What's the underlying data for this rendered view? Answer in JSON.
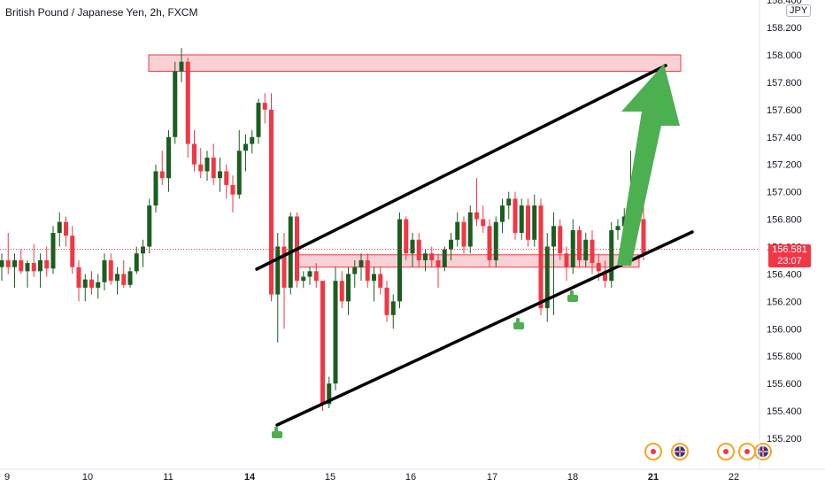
{
  "header": {
    "title": "British Pound / Japanese Yen, 2h, FXCM",
    "currency": "JPY"
  },
  "last_price": {
    "value": "156.581",
    "countdown": "23:07"
  },
  "colors": {
    "up": "#1b5e20",
    "down": "#f23645",
    "zone_fill": "#f8c9cd",
    "zone_border": "#f23645",
    "arrow": "#4caf50",
    "grid": "#f0f3fa",
    "axis_text": "#131722"
  },
  "chart_data": {
    "type": "candlestick",
    "symbol": "GBPJPY",
    "timeframe": "2h",
    "x_ticks": [
      {
        "label": "9",
        "bold": false
      },
      {
        "label": "10",
        "bold": false
      },
      {
        "label": "11",
        "bold": false
      },
      {
        "label": "14",
        "bold": true
      },
      {
        "label": "15",
        "bold": false
      },
      {
        "label": "16",
        "bold": false
      },
      {
        "label": "17",
        "bold": false
      },
      {
        "label": "18",
        "bold": false
      },
      {
        "label": "21",
        "bold": true
      },
      {
        "label": "22",
        "bold": false
      }
    ],
    "y_ticks": [
      "158.400",
      "158.200",
      "158.000",
      "157.800",
      "157.600",
      "157.400",
      "157.200",
      "157.000",
      "156.800",
      "156.600",
      "156.400",
      "156.200",
      "156.000",
      "155.800",
      "155.600",
      "155.400",
      "155.200"
    ],
    "ylim": [
      155.1,
      158.45
    ],
    "last_price": 156.581,
    "candles": [
      [
        156.45,
        156.55,
        156.35,
        156.5
      ],
      [
        156.5,
        156.7,
        156.4,
        156.45
      ],
      [
        156.45,
        156.55,
        156.3,
        156.5
      ],
      [
        156.5,
        156.58,
        156.4,
        156.42
      ],
      [
        156.42,
        156.5,
        156.3,
        156.48
      ],
      [
        156.48,
        156.62,
        156.38,
        156.42
      ],
      [
        156.42,
        156.55,
        156.3,
        156.5
      ],
      [
        156.5,
        156.6,
        156.38,
        156.44
      ],
      [
        156.44,
        156.75,
        156.4,
        156.7
      ],
      [
        156.7,
        156.85,
        156.6,
        156.78
      ],
      [
        156.78,
        156.82,
        156.6,
        156.68
      ],
      [
        156.68,
        156.75,
        156.4,
        156.45
      ],
      [
        156.45,
        156.5,
        156.2,
        156.3
      ],
      [
        156.3,
        156.4,
        156.2,
        156.36
      ],
      [
        156.36,
        156.42,
        156.25,
        156.3
      ],
      [
        156.3,
        156.4,
        156.22,
        156.34
      ],
      [
        156.34,
        156.55,
        156.28,
        156.5
      ],
      [
        156.5,
        156.55,
        156.32,
        156.35
      ],
      [
        156.35,
        156.45,
        156.25,
        156.4
      ],
      [
        156.4,
        156.5,
        156.3,
        156.32
      ],
      [
        156.32,
        156.45,
        156.3,
        156.42
      ],
      [
        156.42,
        156.6,
        156.4,
        156.55
      ],
      [
        156.55,
        156.65,
        156.45,
        156.6
      ],
      [
        156.6,
        156.95,
        156.55,
        156.9
      ],
      [
        156.9,
        157.2,
        156.85,
        157.15
      ],
      [
        157.15,
        157.3,
        157.05,
        157.1
      ],
      [
        157.1,
        157.45,
        157.0,
        157.4
      ],
      [
        157.4,
        157.95,
        157.35,
        157.88
      ],
      [
        157.88,
        158.05,
        157.8,
        157.95
      ],
      [
        157.95,
        157.98,
        157.25,
        157.35
      ],
      [
        157.35,
        157.45,
        157.15,
        157.2
      ],
      [
        157.2,
        157.32,
        157.1,
        157.15
      ],
      [
        157.15,
        157.3,
        157.08,
        157.25
      ],
      [
        157.25,
        157.35,
        157.05,
        157.1
      ],
      [
        157.1,
        157.25,
        157.0,
        157.15
      ],
      [
        157.15,
        157.2,
        156.95,
        157.05
      ],
      [
        157.05,
        157.12,
        156.85,
        156.98
      ],
      [
        156.98,
        157.45,
        156.95,
        157.3
      ],
      [
        157.3,
        157.42,
        157.15,
        157.35
      ],
      [
        157.35,
        157.45,
        157.28,
        157.4
      ],
      [
        157.4,
        157.68,
        157.35,
        157.65
      ],
      [
        157.65,
        157.72,
        157.5,
        157.6
      ],
      [
        157.6,
        157.72,
        156.2,
        156.25
      ],
      [
        156.25,
        156.7,
        155.9,
        156.6
      ],
      [
        156.6,
        156.7,
        156.0,
        156.3
      ],
      [
        156.3,
        156.85,
        156.25,
        156.82
      ],
      [
        156.82,
        156.85,
        156.3,
        156.35
      ],
      [
        156.35,
        156.42,
        156.3,
        156.38
      ],
      [
        156.38,
        156.45,
        156.32,
        156.42
      ],
      [
        156.42,
        156.48,
        156.3,
        156.35
      ],
      [
        156.35,
        156.35,
        155.4,
        155.45
      ],
      [
        155.45,
        155.65,
        155.42,
        155.6
      ],
      [
        155.6,
        156.45,
        155.55,
        156.35
      ],
      [
        156.35,
        156.42,
        156.15,
        156.2
      ],
      [
        156.2,
        156.45,
        156.1,
        156.4
      ],
      [
        156.4,
        156.5,
        156.3,
        156.45
      ],
      [
        156.45,
        156.55,
        156.35,
        156.5
      ],
      [
        156.5,
        156.55,
        156.3,
        156.35
      ],
      [
        156.35,
        156.45,
        156.2,
        156.4
      ],
      [
        156.4,
        156.45,
        156.25,
        156.3
      ],
      [
        156.3,
        156.35,
        156.05,
        156.1
      ],
      [
        156.1,
        156.25,
        156.0,
        156.2
      ],
      [
        156.2,
        156.85,
        156.15,
        156.8
      ],
      [
        156.8,
        156.82,
        156.5,
        156.55
      ],
      [
        156.55,
        156.7,
        156.45,
        156.65
      ],
      [
        156.65,
        156.7,
        156.45,
        156.5
      ],
      [
        156.5,
        156.58,
        156.42,
        156.55
      ],
      [
        156.55,
        156.6,
        156.45,
        156.5
      ],
      [
        156.5,
        156.55,
        156.3,
        156.45
      ],
      [
        156.45,
        156.6,
        156.42,
        156.58
      ],
      [
        156.58,
        156.7,
        156.5,
        156.65
      ],
      [
        156.65,
        156.85,
        156.6,
        156.78
      ],
      [
        156.78,
        156.82,
        156.55,
        156.6
      ],
      [
        156.6,
        156.9,
        156.55,
        156.85
      ],
      [
        156.85,
        157.1,
        156.75,
        156.8
      ],
      [
        156.8,
        156.9,
        156.7,
        156.75
      ],
      [
        156.75,
        156.8,
        156.45,
        156.5
      ],
      [
        156.5,
        156.82,
        156.45,
        156.78
      ],
      [
        156.78,
        156.95,
        156.7,
        156.9
      ],
      [
        156.9,
        157.0,
        156.8,
        156.95
      ],
      [
        156.95,
        157.0,
        156.65,
        156.7
      ],
      [
        156.7,
        156.95,
        156.65,
        156.9
      ],
      [
        156.9,
        156.95,
        156.6,
        156.65
      ],
      [
        156.65,
        156.98,
        156.6,
        156.9
      ],
      [
        156.9,
        156.95,
        156.1,
        156.15
      ],
      [
        156.15,
        156.7,
        156.05,
        156.6
      ],
      [
        156.6,
        156.85,
        156.1,
        156.75
      ],
      [
        156.75,
        156.8,
        156.5,
        156.55
      ],
      [
        156.55,
        156.6,
        156.35,
        156.45
      ],
      [
        156.45,
        156.8,
        156.4,
        156.72
      ],
      [
        156.72,
        156.75,
        156.45,
        156.5
      ],
      [
        156.5,
        156.7,
        156.45,
        156.65
      ],
      [
        156.65,
        156.72,
        156.4,
        156.48
      ],
      [
        156.48,
        156.55,
        156.35,
        156.42
      ],
      [
        156.42,
        156.5,
        156.3,
        156.35
      ],
      [
        156.35,
        156.78,
        156.3,
        156.72
      ],
      [
        156.72,
        156.8,
        156.65,
        156.75
      ],
      [
        156.75,
        156.88,
        156.7,
        156.82
      ],
      [
        156.82,
        157.3,
        156.78,
        156.88
      ],
      [
        156.88,
        156.92,
        156.7,
        156.8
      ],
      [
        156.8,
        156.95,
        156.5,
        156.55
      ]
    ],
    "zones": [
      {
        "y_top": 158.0,
        "y_bottom": 157.88,
        "x_start_index": 28,
        "x_end_index": 124
      },
      {
        "y_top": 156.54,
        "y_bottom": 156.45,
        "x_start_index": 56,
        "x_end_index": 117
      }
    ],
    "trendlines": [
      {
        "from": {
          "index": 48,
          "price": 156.44
        },
        "to": {
          "index": 126,
          "price": 157.93
        }
      },
      {
        "from": {
          "index": 52,
          "price": 155.32
        },
        "to": {
          "index": 130,
          "price": 156.72
        }
      }
    ],
    "arrow": {
      "from": {
        "index": 116,
        "price": 156.45
      },
      "to": {
        "index": 124,
        "price": 157.93
      }
    },
    "events_count": 4
  }
}
